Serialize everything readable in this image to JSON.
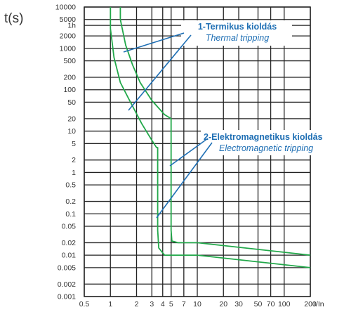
{
  "chart_data": {
    "type": "line",
    "title": "",
    "ylabel": "t(s)",
    "xlabel": "I/In",
    "x_scale": "log",
    "y_scale": "log",
    "xlim": [
      0.5,
      200
    ],
    "ylim": [
      0.001,
      10000
    ],
    "grid": true,
    "x_ticks": [
      {
        "v": 0.5,
        "label": "0.5"
      },
      {
        "v": 1,
        "label": "1"
      },
      {
        "v": 2,
        "label": "2"
      },
      {
        "v": 3,
        "label": "3"
      },
      {
        "v": 4,
        "label": "4"
      },
      {
        "v": 5,
        "label": "5"
      },
      {
        "v": 7,
        "label": "7"
      },
      {
        "v": 10,
        "label": "10"
      },
      {
        "v": 20,
        "label": "20"
      },
      {
        "v": 30,
        "label": "30"
      },
      {
        "v": 50,
        "label": "50"
      },
      {
        "v": 70,
        "label": "70"
      },
      {
        "v": 100,
        "label": "100"
      },
      {
        "v": 200,
        "label": "200"
      }
    ],
    "y_ticks": [
      {
        "v": 10000,
        "label": "10000"
      },
      {
        "v": 5000,
        "label": "5000"
      },
      {
        "v": 3600,
        "label": "1h"
      },
      {
        "v": 2000,
        "label": "2000"
      },
      {
        "v": 1000,
        "label": "1000"
      },
      {
        "v": 500,
        "label": "500"
      },
      {
        "v": 200,
        "label": "200"
      },
      {
        "v": 100,
        "label": "100"
      },
      {
        "v": 50,
        "label": "50"
      },
      {
        "v": 20,
        "label": "20"
      },
      {
        "v": 10,
        "label": "10"
      },
      {
        "v": 5,
        "label": "5"
      },
      {
        "v": 2,
        "label": "2"
      },
      {
        "v": 1,
        "label": "1"
      },
      {
        "v": 0.5,
        "label": "0.5"
      },
      {
        "v": 0.2,
        "label": "0.2"
      },
      {
        "v": 0.1,
        "label": "0.1"
      },
      {
        "v": 0.05,
        "label": "0.05"
      },
      {
        "v": 0.02,
        "label": "0.02"
      },
      {
        "v": 0.01,
        "label": "0.01"
      },
      {
        "v": 0.005,
        "label": "0.005"
      },
      {
        "v": 0.002,
        "label": "0.002"
      },
      {
        "v": 0.001,
        "label": "0.001"
      }
    ],
    "series": [
      {
        "color": "#22a84a",
        "points": [
          [
            1.0,
            10000
          ],
          [
            1.0,
            3000
          ],
          [
            1.1,
            600
          ],
          [
            1.3,
            150
          ],
          [
            1.7,
            50
          ],
          [
            2.3,
            15
          ],
          [
            3.0,
            6
          ],
          [
            3.4,
            4
          ],
          [
            3.5,
            4
          ],
          [
            3.5,
            0.04
          ],
          [
            3.6,
            0.015
          ],
          [
            4.2,
            0.01
          ],
          [
            10,
            0.01
          ],
          [
            200,
            0.005
          ]
        ]
      },
      {
        "color": "#22a84a",
        "points": [
          [
            1.3,
            10000
          ],
          [
            1.3,
            5000
          ],
          [
            1.5,
            1200
          ],
          [
            1.8,
            400
          ],
          [
            2.2,
            150
          ],
          [
            3.0,
            55
          ],
          [
            4.2,
            25
          ],
          [
            5.0,
            20
          ],
          [
            5.0,
            0.04
          ],
          [
            5.1,
            0.022
          ],
          [
            6.0,
            0.02
          ],
          [
            10,
            0.02
          ],
          [
            200,
            0.01
          ]
        ]
      }
    ],
    "annotations": [
      {
        "line1": "1-Termikus kioldás",
        "line2": "Thermal tripping"
      },
      {
        "line1": "2-Elektromagnetikus kioldás",
        "line2": "Electromagnetic tripping"
      }
    ],
    "arrow_color": "#1f6fb4"
  }
}
